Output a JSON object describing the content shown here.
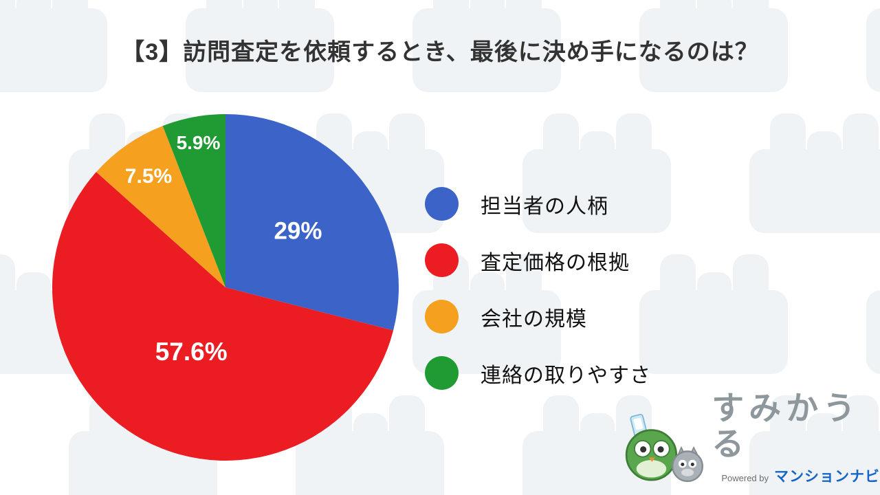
{
  "title": "【3】訪問査定を依頼するとき、最後に決め手になるのは？",
  "chart_data": {
    "type": "pie",
    "categories": [
      "担当者の人柄",
      "査定価格の根拠",
      "会社の規模",
      "連絡の取りやすさ"
    ],
    "values": [
      29,
      57.6,
      7.5,
      5.9
    ],
    "labels": [
      "29%",
      "57.6%",
      "7.5%",
      "5.9%"
    ],
    "colors": [
      "#3c63c8",
      "#ec1c23",
      "#f6a01f",
      "#209b34"
    ],
    "title": "【3】訪問査定を依頼するとき、最後に決め手になるのは？",
    "start_angle_deg": -90,
    "direction": "clockwise",
    "legend_position": "right",
    "label_color": "#ffffff"
  },
  "footer": {
    "brand_name": "すみかうる",
    "powered_by": "Powered by",
    "powered_brand": "マンションナビ"
  }
}
